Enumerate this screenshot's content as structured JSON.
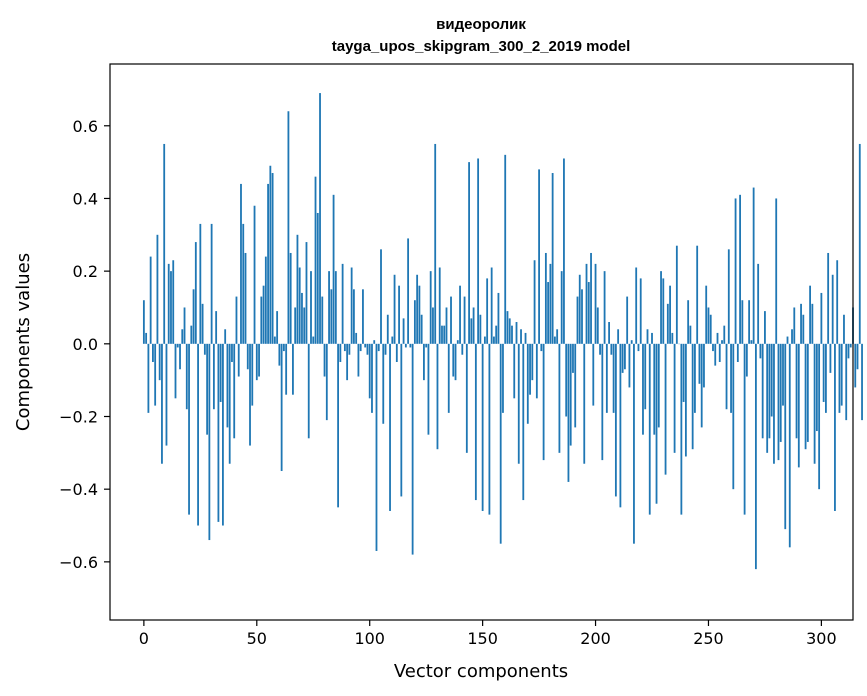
{
  "chart_data": {
    "type": "bar",
    "title_line1": "видеоролик",
    "title_line2": "tayga_upos_skipgram_300_2_2019 model",
    "xlabel": "Vector components",
    "ylabel": "Components values",
    "xlim": [
      -15,
      314
    ],
    "ylim": [
      -0.76,
      0.77
    ],
    "xticks": [
      0,
      50,
      100,
      150,
      200,
      250,
      300
    ],
    "xtick_labels": [
      "0",
      "50",
      "100",
      "150",
      "200",
      "250",
      "300"
    ],
    "yticks": [
      -0.6,
      -0.4,
      -0.2,
      0.0,
      0.2,
      0.4,
      0.6
    ],
    "ytick_labels": [
      "−0.6",
      "−0.4",
      "−0.2",
      "0.0",
      "0.2",
      "0.4",
      "0.6"
    ],
    "bar_color": "#1f77b4",
    "values": [
      0.12,
      0.03,
      -0.19,
      0.24,
      -0.05,
      -0.17,
      0.3,
      -0.1,
      -0.33,
      0.55,
      -0.28,
      0.22,
      0.2,
      0.23,
      -0.15,
      -0.01,
      -0.07,
      0.04,
      0.1,
      -0.18,
      -0.47,
      0.05,
      0.15,
      0.28,
      -0.5,
      0.33,
      0.11,
      -0.03,
      -0.25,
      -0.54,
      0.33,
      -0.18,
      0.09,
      -0.49,
      -0.16,
      -0.5,
      0.04,
      -0.23,
      -0.33,
      -0.05,
      -0.26,
      0.13,
      -0.09,
      0.44,
      0.33,
      0.25,
      -0.07,
      -0.28,
      -0.17,
      0.38,
      -0.1,
      -0.09,
      0.13,
      0.16,
      0.24,
      0.44,
      0.49,
      0.47,
      0.02,
      0.09,
      -0.06,
      -0.35,
      -0.02,
      -0.14,
      0.64,
      0.25,
      -0.14,
      0.1,
      0.3,
      0.21,
      0.14,
      0.1,
      0.28,
      -0.26,
      0.2,
      0.02,
      0.46,
      0.36,
      0.69,
      0.13,
      -0.09,
      -0.21,
      0.2,
      0.15,
      0.41,
      0.2,
      -0.45,
      -0.05,
      0.22,
      -0.02,
      -0.1,
      -0.03,
      0.21,
      0.15,
      0.03,
      -0.09,
      -0.02,
      0.15,
      -0.01,
      -0.03,
      -0.15,
      -0.19,
      0.01,
      -0.57,
      -0.02,
      0.26,
      -0.22,
      -0.03,
      0.08,
      -0.46,
      0.02,
      0.19,
      -0.05,
      0.16,
      -0.42,
      0.07,
      -0.01,
      0.29,
      -0.01,
      -0.58,
      0.12,
      0.19,
      0.16,
      0.08,
      -0.1,
      -0.01,
      -0.25,
      0.2,
      0.1,
      0.55,
      -0.29,
      0.21,
      0.05,
      0.05,
      0.1,
      -0.19,
      0.13,
      -0.09,
      -0.1,
      0.01,
      0.16,
      -0.03,
      0.13,
      -0.3,
      0.5,
      0.07,
      0.1,
      -0.43,
      0.51,
      0.08,
      -0.46,
      0.02,
      0.18,
      -0.47,
      0.21,
      0.02,
      0.05,
      0.14,
      -0.55,
      -0.19,
      0.52,
      0.09,
      0.07,
      0.05,
      -0.15,
      0.06,
      -0.33,
      0.04,
      -0.43,
      0.03,
      -0.22,
      -0.14,
      -0.1,
      0.23,
      -0.15,
      0.48,
      -0.02,
      -0.32,
      0.25,
      0.17,
      0.22,
      0.47,
      0.02,
      0.04,
      -0.3,
      0.2,
      0.51,
      -0.2,
      -0.38,
      -0.28,
      -0.08,
      -0.23,
      0.13,
      0.19,
      0.15,
      -0.33,
      0.22,
      0.17,
      0.25,
      -0.17,
      0.22,
      0.1,
      -0.03,
      -0.32,
      0.2,
      -0.19,
      0.06,
      -0.03,
      -0.19,
      -0.42,
      0.04,
      -0.45,
      -0.08,
      -0.07,
      0.13,
      -0.12,
      0.01,
      -0.55,
      0.21,
      -0.02,
      0.18,
      -0.25,
      -0.18,
      0.04,
      -0.47,
      0.03,
      -0.25,
      -0.44,
      -0.23,
      0.2,
      0.18,
      -0.36,
      0.11,
      0.16,
      0.03,
      -0.3,
      0.27,
      0.0,
      -0.47,
      -0.16,
      -0.31,
      0.12,
      0.05,
      -0.29,
      -0.19,
      0.27,
      -0.11,
      -0.23,
      -0.12,
      0.16,
      0.1,
      0.08,
      -0.02,
      -0.06,
      0.03,
      -0.05,
      0.01,
      0.05,
      -0.18,
      0.26,
      -0.19,
      -0.4,
      0.4,
      -0.05,
      0.41,
      0.12,
      -0.47,
      -0.09,
      0.12,
      0.01,
      0.43,
      -0.62,
      0.22,
      -0.04,
      -0.26,
      0.09,
      -0.3,
      -0.26,
      -0.2,
      -0.33,
      0.4,
      -0.32,
      -0.27,
      -0.17,
      -0.51,
      0.02,
      -0.56,
      0.04,
      0.1,
      -0.26,
      -0.34,
      0.11,
      0.08,
      -0.29,
      -0.27,
      0.16,
      0.11,
      -0.33,
      -0.24,
      -0.4,
      0.14,
      -0.16,
      -0.19,
      0.25,
      -0.08,
      0.19,
      -0.46,
      0.23,
      -0.19,
      -0.17,
      0.08,
      -0.21,
      -0.04,
      -0.01,
      0.1,
      -0.12,
      -0.07,
      0.55,
      -0.21
    ]
  }
}
